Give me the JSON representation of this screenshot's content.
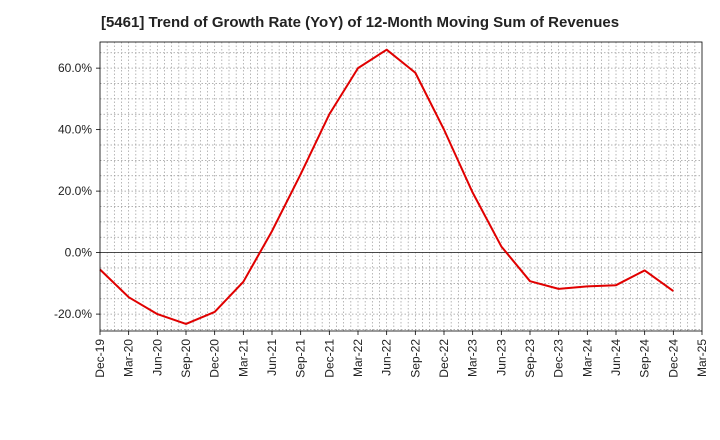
{
  "chart_data": {
    "type": "line",
    "title": "[5461]  Trend of Growth Rate (YoY) of 12-Month Moving Sum of Revenues",
    "xlabel": "",
    "ylabel": "",
    "ylim": [
      -25.5,
      68.5
    ],
    "grid": "on",
    "line_color": "#e00000",
    "x_tick_labels": [
      "Dec-19",
      "Mar-20",
      "Jun-20",
      "Sep-20",
      "Dec-20",
      "Mar-21",
      "Jun-21",
      "Sep-21",
      "Dec-21",
      "Mar-22",
      "Jun-22",
      "Sep-22",
      "Dec-22",
      "Mar-23",
      "Jun-23",
      "Sep-23",
      "Dec-23",
      "Mar-24",
      "Jun-24",
      "Sep-24",
      "Dec-24",
      "Mar-25"
    ],
    "y_ticks": [
      -20,
      0,
      20,
      40,
      60
    ],
    "y_tick_labels": [
      "-20.0%",
      "0.0%",
      "20.0%",
      "40.0%",
      "60.0%"
    ],
    "series": [
      {
        "x": [
          "Dec-19",
          "Mar-20",
          "Jun-20",
          "Sep-20",
          "Dec-20",
          "Mar-21",
          "Jun-21",
          "Sep-21",
          "Dec-21",
          "Mar-22",
          "Jun-22",
          "Sep-22",
          "Dec-22",
          "Mar-23",
          "Jun-23",
          "Sep-23",
          "Dec-23",
          "Mar-24",
          "Jun-24",
          "Sep-24",
          "Dec-24"
        ],
        "values": [
          -5.5,
          -14.5,
          -20.0,
          -23.2,
          -19.3,
          -9.5,
          7.0,
          25.5,
          45.0,
          60.0,
          66.0,
          58.5,
          40.0,
          19.5,
          2.0,
          -9.3,
          -11.8,
          -11.0,
          -10.6,
          -5.8,
          -12.5
        ]
      }
    ]
  }
}
